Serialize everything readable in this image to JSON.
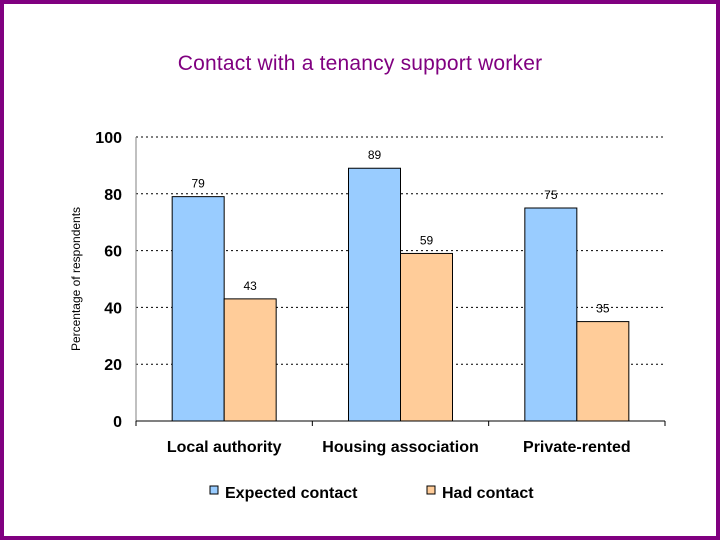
{
  "colors": {
    "border": "#800080",
    "title": "#800080",
    "series_1": "#99CCFF",
    "series_2": "#FFCC99"
  },
  "chart_data": {
    "type": "bar",
    "title": "Contact with a tenancy support worker",
    "xlabel": "",
    "ylabel": "Percentage of respondents",
    "ylim": [
      0,
      100
    ],
    "yticks": [
      "0",
      "20",
      "40",
      "60",
      "80",
      "100"
    ],
    "grid": true,
    "legend_position": "bottom",
    "categories": [
      "Local authority",
      "Housing association",
      "Private-rented"
    ],
    "series": [
      {
        "name": "Expected contact",
        "values": [
          79,
          89,
          75
        ]
      },
      {
        "name": "Had contact",
        "values": [
          43,
          59,
          35
        ]
      }
    ]
  }
}
